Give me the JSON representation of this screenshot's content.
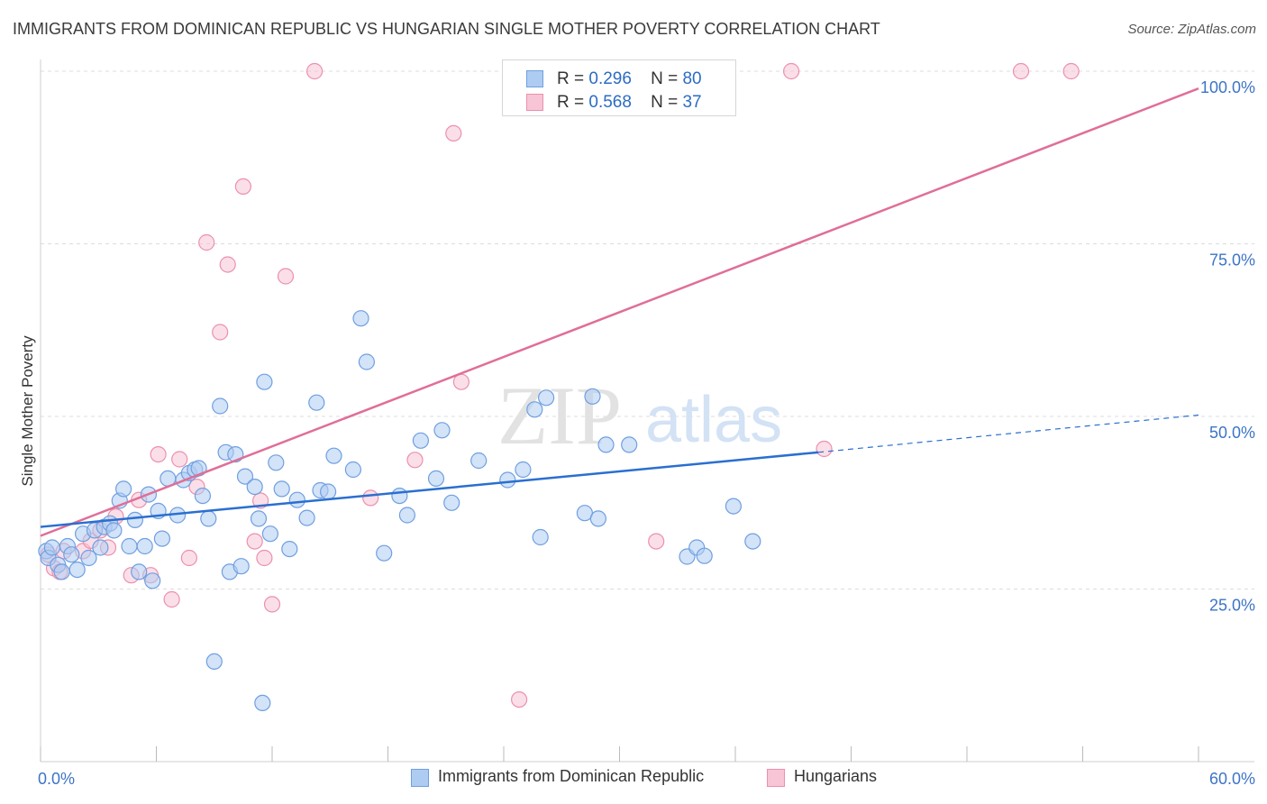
{
  "title": "IMMIGRANTS FROM DOMINICAN REPUBLIC VS HUNGARIAN SINGLE MOTHER POVERTY CORRELATION CHART",
  "source": "Source: ZipAtlas.com",
  "watermark": {
    "zip": "ZIP",
    "atlas": "atlas"
  },
  "legend": {
    "rows": [
      {
        "r_label": "R =",
        "r_value": "0.296",
        "n_label": "N =",
        "n_value": "80"
      },
      {
        "r_label": "R =",
        "r_value": "0.568",
        "n_label": "N =",
        "n_value": "37"
      }
    ]
  },
  "bottom_legend": {
    "series1": "Immigrants from Dominican Republic",
    "series2": "Hungarians"
  },
  "colors": {
    "blue_fill": "#aeccf2",
    "blue_stroke": "#6f9fe0",
    "blue_line": "#2a6fd0",
    "pink_fill": "#f7c5d5",
    "pink_stroke": "#ec90ad",
    "pink_line": "#e06e98",
    "tick_label": "#3d74c6",
    "grid": "#dcdcdc"
  },
  "chart_data": {
    "type": "scatter",
    "title": "IMMIGRANTS FROM DOMINICAN REPUBLIC VS HUNGARIAN SINGLE MOTHER POVERTY CORRELATION CHART",
    "xlabel": "",
    "ylabel": "Single Mother Poverty",
    "xlim": [
      0,
      60
    ],
    "ylim": [
      0,
      100
    ],
    "x_tick_labels": [
      "0.0%",
      "60.0%"
    ],
    "y_ticks": [
      25,
      50,
      75,
      100
    ],
    "y_tick_labels": [
      "25.0%",
      "50.0%",
      "75.0%",
      "100.0%"
    ],
    "grid": true,
    "legend_position": "top-center",
    "series": [
      {
        "name": "Immigrants from Dominican Republic",
        "R": 0.296,
        "N": 80,
        "trend": {
          "x0": 0,
          "y0": 34.0,
          "x1": 40.3,
          "y1": 44.8,
          "dashed_to_x": 60,
          "dashed_to_y": 50.2
        },
        "points": [
          [
            0.3,
            30.5
          ],
          [
            0.4,
            29.5
          ],
          [
            0.6,
            31.0
          ],
          [
            0.9,
            28.5
          ],
          [
            1.1,
            27.5
          ],
          [
            1.4,
            31.2
          ],
          [
            1.6,
            30.0
          ],
          [
            1.9,
            27.8
          ],
          [
            2.2,
            33.0
          ],
          [
            2.5,
            29.5
          ],
          [
            2.8,
            33.5
          ],
          [
            3.1,
            31.0
          ],
          [
            3.3,
            34.0
          ],
          [
            3.6,
            34.5
          ],
          [
            3.8,
            33.5
          ],
          [
            4.1,
            37.8
          ],
          [
            4.3,
            39.5
          ],
          [
            4.6,
            31.2
          ],
          [
            4.9,
            35.0
          ],
          [
            5.1,
            27.5
          ],
          [
            5.4,
            31.2
          ],
          [
            5.6,
            38.7
          ],
          [
            5.8,
            26.2
          ],
          [
            6.1,
            36.3
          ],
          [
            6.3,
            32.3
          ],
          [
            6.6,
            41.0
          ],
          [
            7.1,
            35.7
          ],
          [
            7.4,
            40.8
          ],
          [
            7.7,
            41.8
          ],
          [
            8.0,
            42.3
          ],
          [
            8.2,
            42.5
          ],
          [
            8.4,
            38.5
          ],
          [
            8.7,
            35.2
          ],
          [
            9.3,
            51.5
          ],
          [
            9.6,
            44.8
          ],
          [
            9.8,
            27.5
          ],
          [
            10.1,
            44.5
          ],
          [
            10.4,
            28.3
          ],
          [
            10.6,
            41.3
          ],
          [
            11.1,
            39.8
          ],
          [
            11.3,
            35.2
          ],
          [
            11.6,
            55.0
          ],
          [
            11.9,
            33.0
          ],
          [
            12.2,
            43.3
          ],
          [
            12.5,
            39.5
          ],
          [
            12.9,
            30.8
          ],
          [
            13.3,
            37.9
          ],
          [
            13.8,
            35.3
          ],
          [
            14.3,
            52.0
          ],
          [
            14.5,
            39.3
          ],
          [
            14.9,
            39.1
          ],
          [
            15.2,
            44.3
          ],
          [
            16.2,
            42.3
          ],
          [
            16.6,
            64.2
          ],
          [
            16.9,
            57.9
          ],
          [
            17.8,
            30.2
          ],
          [
            18.6,
            38.5
          ],
          [
            19.0,
            35.7
          ],
          [
            19.7,
            46.5
          ],
          [
            20.5,
            41.0
          ],
          [
            20.8,
            48.0
          ],
          [
            21.3,
            37.5
          ],
          [
            22.7,
            43.6
          ],
          [
            24.2,
            40.8
          ],
          [
            25.0,
            42.3
          ],
          [
            25.6,
            51.0
          ],
          [
            25.9,
            32.5
          ],
          [
            26.2,
            52.7
          ],
          [
            28.2,
            36.0
          ],
          [
            28.6,
            52.9
          ],
          [
            28.9,
            35.2
          ],
          [
            29.3,
            45.9
          ],
          [
            30.5,
            45.9
          ],
          [
            33.5,
            29.7
          ],
          [
            34.0,
            31.0
          ],
          [
            34.4,
            29.8
          ],
          [
            35.9,
            37.0
          ],
          [
            36.9,
            31.9
          ],
          [
            9.0,
            14.5
          ],
          [
            11.5,
            8.5
          ]
        ]
      },
      {
        "name": "Hungarians",
        "R": 0.568,
        "N": 37,
        "trend": {
          "x0": 0,
          "y0": 32.7,
          "x1": 60,
          "y1": 97.5
        },
        "points": [
          [
            0.4,
            30.0
          ],
          [
            0.7,
            28.0
          ],
          [
            1.0,
            27.5
          ],
          [
            1.2,
            30.5
          ],
          [
            2.2,
            30.5
          ],
          [
            2.6,
            32.0
          ],
          [
            3.1,
            33.5
          ],
          [
            3.5,
            31.0
          ],
          [
            3.9,
            35.5
          ],
          [
            4.7,
            27.0
          ],
          [
            5.1,
            37.9
          ],
          [
            5.7,
            27.0
          ],
          [
            6.1,
            44.5
          ],
          [
            6.8,
            23.5
          ],
          [
            7.2,
            43.8
          ],
          [
            7.7,
            29.5
          ],
          [
            8.1,
            39.8
          ],
          [
            8.6,
            75.2
          ],
          [
            9.3,
            62.2
          ],
          [
            9.7,
            72.0
          ],
          [
            10.5,
            83.3
          ],
          [
            11.1,
            31.9
          ],
          [
            11.4,
            37.8
          ],
          [
            11.6,
            29.5
          ],
          [
            12.0,
            22.8
          ],
          [
            12.7,
            70.3
          ],
          [
            14.2,
            100.0
          ],
          [
            19.4,
            43.7
          ],
          [
            21.4,
            91.0
          ],
          [
            21.8,
            55.0
          ],
          [
            17.1,
            38.2
          ],
          [
            24.8,
            9.0
          ],
          [
            31.9,
            31.9
          ],
          [
            38.9,
            100.0
          ],
          [
            40.6,
            45.3
          ],
          [
            50.8,
            100.0
          ],
          [
            53.4,
            100.0
          ]
        ]
      }
    ]
  }
}
